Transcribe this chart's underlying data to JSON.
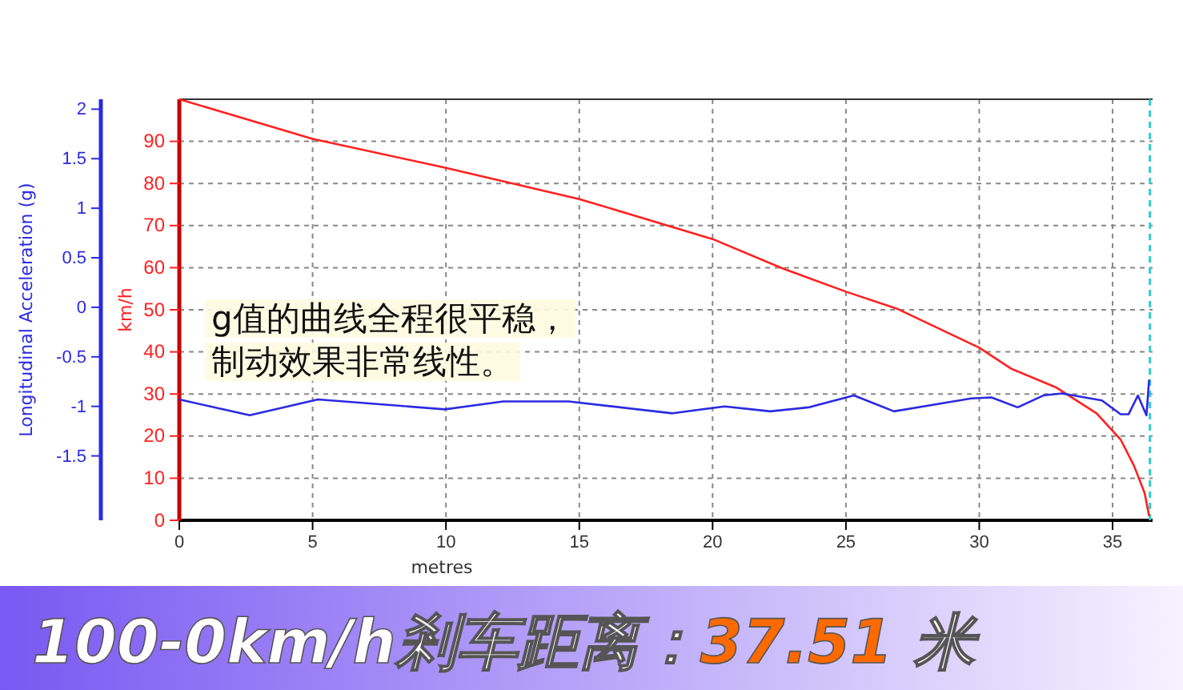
{
  "chart_data": {
    "type": "line",
    "title": "100-0km/h剎车距离：37.51 米",
    "xlabel": "metres",
    "ylabel": "km/h",
    "y2label": "Longitudinal Acceleration (g)",
    "annotations": [
      "g值的曲线全程很平稳，",
      "制动效果非常线性。"
    ],
    "xlim": [
      0,
      36.5
    ],
    "xticks": [
      0,
      5,
      10,
      15,
      20,
      25,
      30,
      35
    ],
    "ylim": [
      0,
      100
    ],
    "yticks": [
      0,
      10,
      20,
      30,
      40,
      50,
      60,
      70,
      80,
      90
    ],
    "y2lim": [
      -2.15,
      2.1
    ],
    "y2ticks": [
      -1.5,
      -1,
      -0.5,
      0,
      0.5,
      1,
      1.5,
      2
    ],
    "grid": true,
    "marker": "none",
    "line_style": "solid",
    "ref_lines": [
      {
        "axis": "x",
        "value": 36.4,
        "label": null,
        "color": "#33cccc",
        "line_style": "dashed"
      }
    ],
    "series": [
      {
        "color": "#ff2020",
        "x": [
          0,
          5,
          10,
          15,
          20,
          22.6,
          25,
          26.9,
          30,
          31.2,
          32.9,
          34.4,
          35.3,
          35.8,
          36.2,
          36.37
        ],
        "values": [
          100,
          90.6,
          83.7,
          76.3,
          66.8,
          59.9,
          54.3,
          50.3,
          41,
          36,
          31.5,
          25.4,
          19.2,
          13,
          6.5,
          1
        ]
      },
      {
        "color": "#2a2ae0",
        "axis": "y2",
        "x": [
          0,
          2.64,
          5.2,
          9.96,
          12.15,
          14.6,
          18.5,
          20.45,
          22.16,
          23.6,
          25.3,
          26.8,
          29.7,
          30.46,
          31.44,
          32.4,
          33.1,
          34.6,
          35.3,
          35.6,
          35.95,
          36.27,
          36.37
        ],
        "values": [
          -0.93,
          -1.09,
          -0.93,
          -1.03,
          -0.95,
          -0.95,
          -1.07,
          -1.0,
          -1.05,
          -1.01,
          -0.89,
          -1.05,
          -0.92,
          -0.91,
          -1.01,
          -0.89,
          -0.87,
          -0.94,
          -1.08,
          -1.08,
          -0.89,
          -1.09,
          -0.73
        ]
      }
    ]
  }
}
